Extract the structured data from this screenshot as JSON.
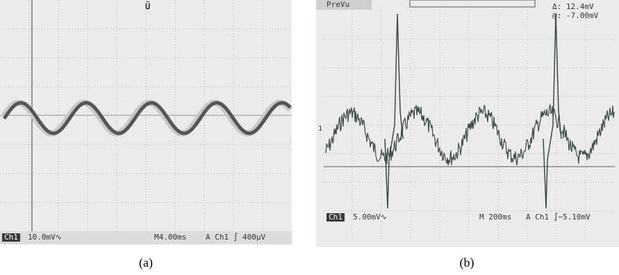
{
  "panels": [
    {
      "caption": "(a)",
      "status": {
        "channel": "Ch1",
        "scale": "10.0mV∿",
        "timebase": "M4.00ms",
        "trigger": "A  Ch1 ∫  400µV"
      }
    },
    {
      "caption": "(b)",
      "tab": "PreVu",
      "cursor": [
        "Δ:  12.4mV",
        "@:  -7.00mV"
      ],
      "marker": "1",
      "status": {
        "channel": "Ch1",
        "scale": "5.00mV∿",
        "timebase": "M 200ms",
        "trigger": "A  Ch1  ∫−5.10mV"
      }
    }
  ]
}
